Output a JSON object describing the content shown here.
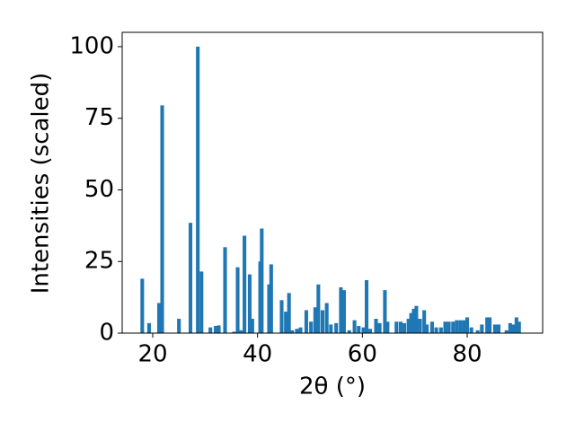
{
  "chart_data": {
    "type": "bar",
    "xlabel": "2θ (°)",
    "ylabel": "Intensities (scaled)",
    "color": "#1f77b4",
    "x": [
      18.0,
      19.3,
      21.2,
      21.8,
      25.0,
      27.2,
      28.6,
      29.3,
      31.0,
      32.0,
      32.6,
      33.8,
      35.5,
      36.2,
      36.8,
      37.5,
      38.5,
      39.0,
      40.5,
      40.8,
      42.2,
      42.6,
      44.6,
      45.4,
      46.0,
      46.6,
      47.5,
      48.2,
      49.3,
      50.2,
      51.0,
      51.6,
      52.4,
      53.2,
      54.0,
      55.0,
      55.9,
      56.5,
      57.5,
      58.5,
      59.3,
      60.2,
      60.8,
      61.5,
      62.6,
      63.3,
      64.3,
      64.8,
      66.5,
      67.3,
      68.0,
      68.8,
      69.3,
      69.8,
      70.3,
      71.0,
      71.8,
      72.3,
      73.3,
      74.1,
      75.0,
      75.8,
      76.5,
      77.3,
      78.0,
      78.7,
      79.4,
      80.0,
      80.8,
      82.0,
      82.8,
      83.8,
      84.3,
      85.3,
      86.0,
      87.5,
      88.2,
      88.8,
      89.4,
      89.9
    ],
    "values": [
      19,
      3.5,
      10.5,
      79.5,
      5,
      38.5,
      100,
      21.5,
      2,
      2.5,
      2.7,
      30,
      0.5,
      23,
      1,
      34,
      20.5,
      5,
      25,
      36.5,
      17,
      24,
      11.5,
      7.5,
      14,
      1,
      1.5,
      2,
      8,
      4,
      9,
      17,
      8,
      10.5,
      3,
      3.5,
      16,
      15,
      1,
      4.5,
      2.5,
      2,
      18.5,
      1.5,
      5,
      3.5,
      15,
      4,
      4,
      4,
      3.5,
      5,
      7,
      8.5,
      9.5,
      5,
      8,
      3,
      4,
      2,
      2,
      4,
      4,
      4,
      4.5,
      4.5,
      4.5,
      5.5,
      2,
      1,
      3,
      5.5,
      5.5,
      3,
      3,
      1,
      3.5,
      3,
      5.5,
      4
    ],
    "xlim": [
      14.17,
      94.4
    ],
    "ylim": [
      0,
      105
    ],
    "xticks": [
      20,
      40,
      60,
      80
    ],
    "yticks": [
      0,
      25,
      50,
      75,
      100
    ]
  }
}
